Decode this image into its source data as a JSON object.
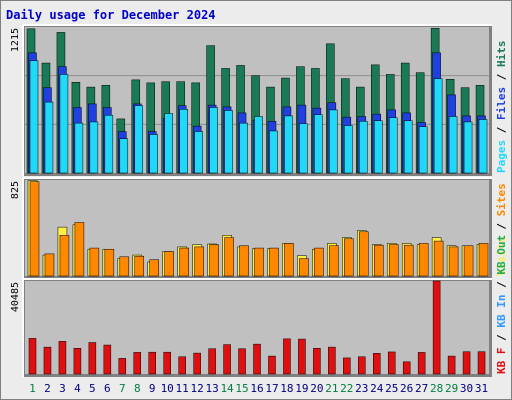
{
  "title": "Daily usage for December 2024",
  "colors": {
    "hits": "#1a7a55",
    "files": "#2040e0",
    "pages": "#20d8f8",
    "visits": "#ffee44",
    "sites": "#ff8800",
    "kb_in": "#3399ff",
    "kb_out": "#22aa55",
    "kb_f": "#e01010",
    "weekend": "#008040",
    "weekday": "#000080",
    "panel": "#c0c0c0"
  },
  "chart_data": [
    {
      "type": "bar",
      "panel": "hits-files-pages",
      "ymax_label": "1215",
      "ylim": [
        0,
        1215
      ],
      "legend": [
        "Pages",
        "/",
        "Files",
        "/",
        "Hits"
      ],
      "categories": [
        "1",
        "2",
        "3",
        "4",
        "5",
        "6",
        "7",
        "8",
        "9",
        "10",
        "11",
        "12",
        "13",
        "14",
        "15",
        "16",
        "17",
        "18",
        "19",
        "20",
        "21",
        "22",
        "23",
        "24",
        "25",
        "26",
        "27",
        "28",
        "29",
        "30",
        "31"
      ],
      "series": [
        {
          "name": "Hits",
          "values": [
            1200,
            915,
            1170,
            755,
            715,
            730,
            450,
            775,
            750,
            760,
            760,
            750,
            1060,
            870,
            895,
            810,
            715,
            790,
            885,
            870,
            1075,
            785,
            715,
            900,
            820,
            915,
            835,
            1205,
            780,
            710,
            730
          ]
        },
        {
          "name": "Files",
          "values": [
            1000,
            710,
            885,
            545,
            575,
            545,
            345,
            575,
            345,
            455,
            560,
            390,
            565,
            550,
            500,
            440,
            430,
            550,
            565,
            540,
            585,
            465,
            470,
            490,
            525,
            500,
            420,
            1000,
            650,
            475,
            475
          ]
        },
        {
          "name": "Pages",
          "values": [
            935,
            590,
            820,
            415,
            425,
            480,
            285,
            560,
            320,
            495,
            530,
            345,
            545,
            520,
            415,
            470,
            350,
            475,
            410,
            485,
            525,
            395,
            430,
            435,
            460,
            435,
            385,
            785,
            470,
            425,
            445
          ]
        }
      ]
    },
    {
      "type": "bar",
      "panel": "visits-sites",
      "ymax_label": "825",
      "ylim": [
        0,
        825
      ],
      "legend": [
        "Visits",
        "/",
        "Sites"
      ],
      "categories": [
        "1",
        "2",
        "3",
        "4",
        "5",
        "6",
        "7",
        "8",
        "9",
        "10",
        "11",
        "12",
        "13",
        "14",
        "15",
        "16",
        "17",
        "18",
        "19",
        "20",
        "21",
        "22",
        "23",
        "24",
        "25",
        "26",
        "27",
        "28",
        "29",
        "30",
        "31"
      ],
      "series": [
        {
          "name": "Visits",
          "values": [
            820,
            180,
            420,
            440,
            230,
            230,
            150,
            180,
            120,
            210,
            250,
            270,
            275,
            350,
            250,
            235,
            235,
            280,
            175,
            230,
            280,
            330,
            390,
            270,
            280,
            280,
            270,
            330,
            260,
            260,
            270
          ]
        },
        {
          "name": "Sites",
          "values": [
            810,
            190,
            350,
            460,
            240,
            230,
            165,
            170,
            140,
            210,
            240,
            250,
            270,
            330,
            260,
            240,
            240,
            280,
            150,
            240,
            260,
            320,
            380,
            265,
            270,
            265,
            280,
            300,
            250,
            260,
            280
          ]
        }
      ]
    },
    {
      "type": "bar",
      "panel": "kbytes",
      "ymax_label": "40485",
      "ylim": [
        0,
        40485
      ],
      "legend": [
        "KB F",
        "/",
        "KB In",
        "/",
        "KB Out"
      ],
      "categories": [
        "1",
        "2",
        "3",
        "4",
        "5",
        "6",
        "7",
        "8",
        "9",
        "10",
        "11",
        "12",
        "13",
        "14",
        "15",
        "16",
        "17",
        "18",
        "19",
        "20",
        "21",
        "22",
        "23",
        "24",
        "25",
        "26",
        "27",
        "28",
        "29",
        "30",
        "31"
      ],
      "series": [
        {
          "name": "KB F",
          "values": [
            15500,
            11700,
            14200,
            11200,
            13700,
            12600,
            6800,
            9400,
            9500,
            9500,
            7500,
            9100,
            11000,
            12800,
            11000,
            13000,
            7800,
            15300,
            15200,
            11200,
            11700,
            7000,
            7500,
            9000,
            9600,
            5300,
            9400,
            40485,
            7800,
            9700,
            9700
          ]
        }
      ]
    }
  ],
  "weekend_days": [
    "1",
    "7",
    "8",
    "14",
    "15",
    "21",
    "22",
    "28",
    "29"
  ]
}
